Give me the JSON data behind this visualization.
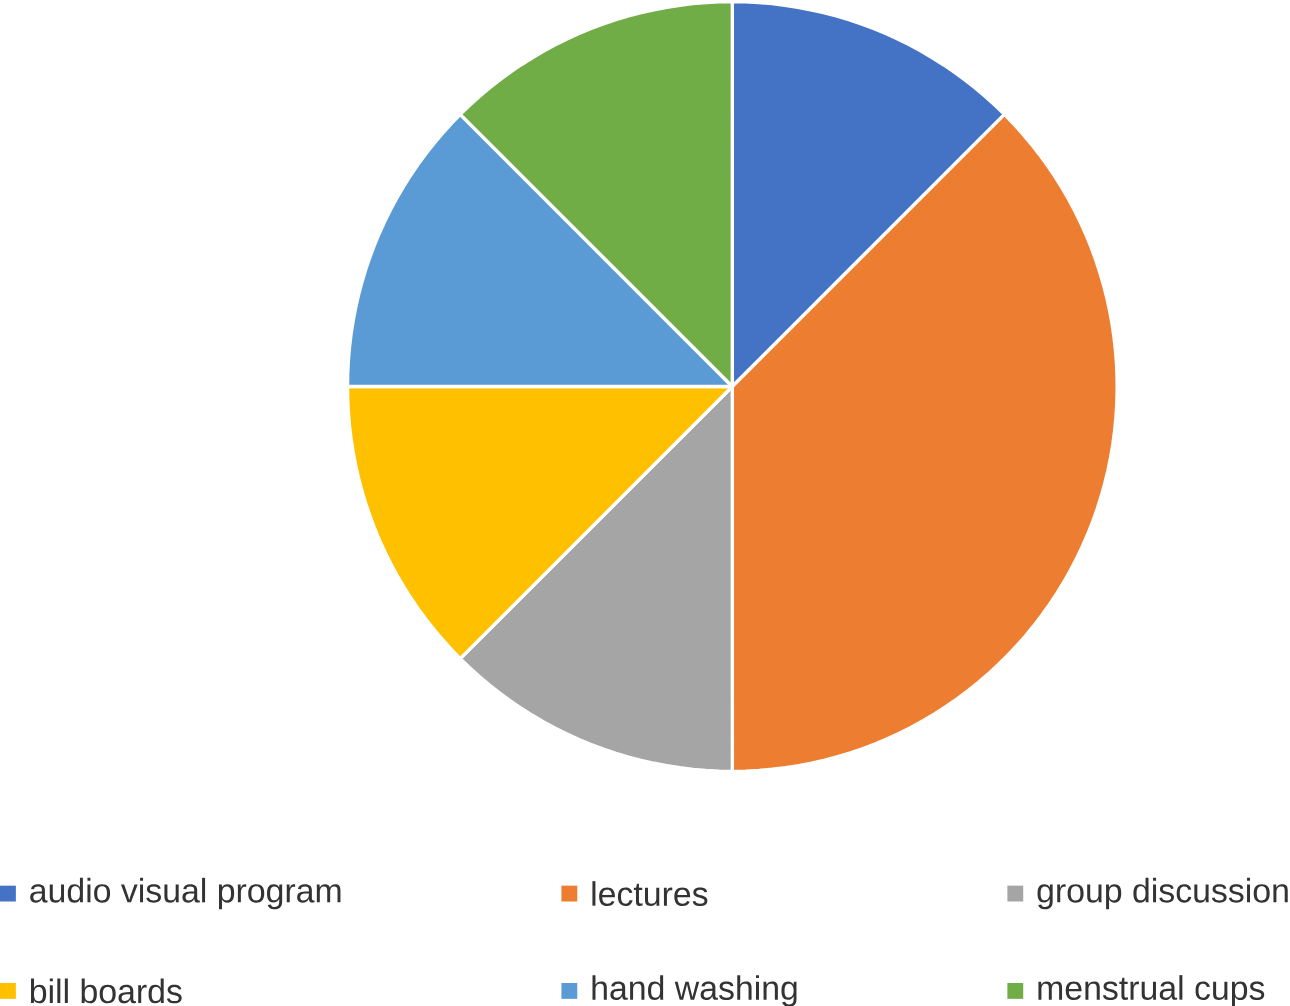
{
  "chart_data": {
    "type": "pie",
    "categories": [
      "audio visual program",
      "lectures",
      "group discussion",
      "bill boards",
      "hand washing",
      "menstrual cups"
    ],
    "values": [
      12.5,
      37.5,
      12.5,
      12.5,
      12.5,
      12.5
    ],
    "colors": [
      "#4472c4",
      "#ed7d31",
      "#a5a5a5",
      "#ffc000",
      "#5b9bd5",
      "#70ad47"
    ],
    "legend": "bottom"
  }
}
